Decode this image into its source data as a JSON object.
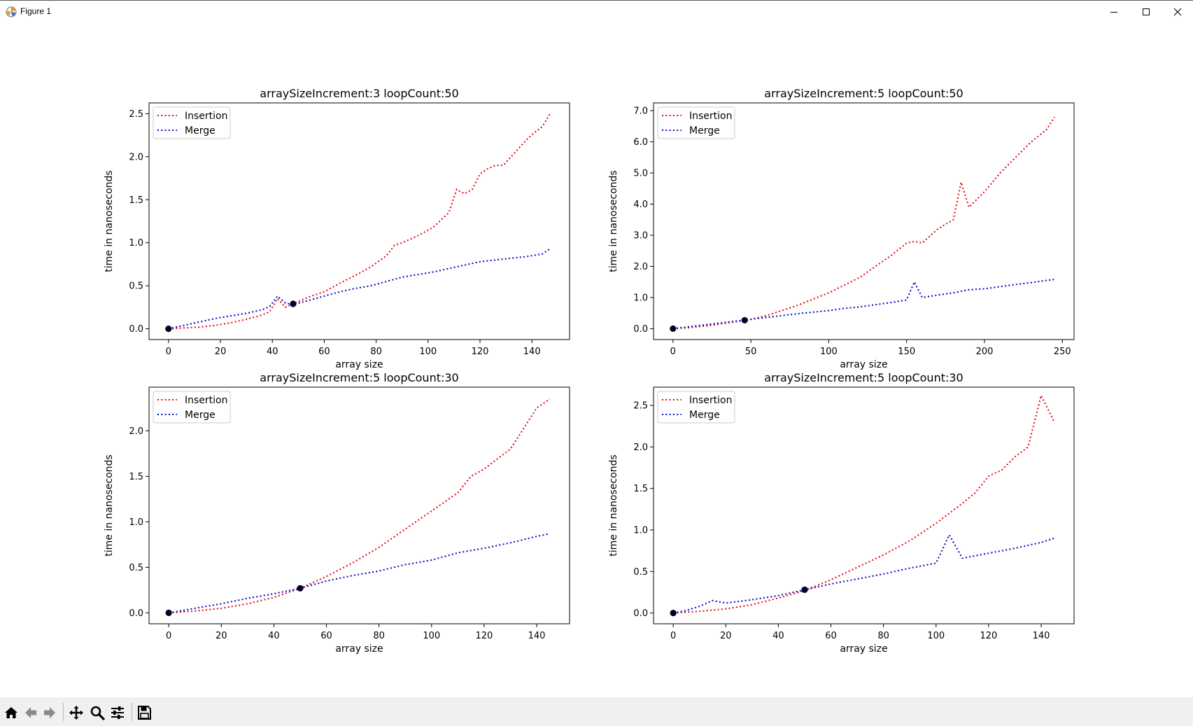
{
  "window": {
    "title": "Figure 1",
    "icons": {
      "app": "matplotlib-icon",
      "minimize": "minimize-icon",
      "maximize": "maximize-icon",
      "close": "close-icon"
    }
  },
  "toolbar": {
    "buttons": [
      {
        "name": "home",
        "icon": "home-icon"
      },
      {
        "name": "back",
        "icon": "back-arrow-icon"
      },
      {
        "name": "forward",
        "icon": "forward-arrow-icon"
      },
      {
        "name": "pan",
        "icon": "move-icon"
      },
      {
        "name": "zoom",
        "icon": "magnifier-icon"
      },
      {
        "name": "configure",
        "icon": "sliders-icon"
      },
      {
        "name": "save",
        "icon": "floppy-disk-icon"
      }
    ]
  },
  "colors": {
    "insertion": "#e8000b",
    "merge": "#0000c8",
    "crossover_marker": "#000022"
  },
  "chart_data": [
    {
      "type": "line",
      "title": "arraySizeIncrement:3 loopCount:50",
      "xlabel": "array size",
      "ylabel": "time in nanoseconds",
      "xlim": [
        -7.5,
        154.5
      ],
      "ylim": [
        -0.125,
        2.625
      ],
      "xticks": [
        0,
        20,
        40,
        60,
        80,
        100,
        120,
        140
      ],
      "xtick_labels": [
        "0",
        "20",
        "40",
        "60",
        "80",
        "100",
        "120",
        "140"
      ],
      "yticks": [
        0.0,
        0.5,
        1.0,
        1.5,
        2.0,
        2.5
      ],
      "ytick_labels": [
        "0.0",
        "0.5",
        "1.0",
        "1.5",
        "2.0",
        "2.5"
      ],
      "legend": {
        "position": "upper-left",
        "entries": [
          "Insertion",
          "Merge"
        ]
      },
      "series": [
        {
          "name": "Insertion",
          "style": "dotted",
          "color": "#e8000b",
          "x": [
            0,
            6,
            12,
            18,
            24,
            30,
            36,
            39,
            42,
            45,
            48,
            54,
            60,
            66,
            72,
            78,
            84,
            87,
            90,
            96,
            102,
            108,
            111,
            114,
            117,
            120,
            123,
            126,
            129,
            132,
            135,
            138,
            141,
            144,
            147
          ],
          "y": [
            0,
            0.01,
            0.02,
            0.04,
            0.07,
            0.11,
            0.16,
            0.2,
            0.35,
            0.25,
            0.29,
            0.37,
            0.43,
            0.53,
            0.62,
            0.72,
            0.85,
            0.97,
            1.0,
            1.08,
            1.18,
            1.35,
            1.62,
            1.57,
            1.62,
            1.8,
            1.86,
            1.9,
            1.9,
            2.0,
            2.1,
            2.2,
            2.28,
            2.35,
            2.5
          ]
        },
        {
          "name": "Merge",
          "style": "dotted",
          "color": "#0000c8",
          "x": [
            0,
            6,
            12,
            18,
            24,
            30,
            36,
            39,
            42,
            45,
            48,
            54,
            60,
            66,
            72,
            78,
            84,
            90,
            96,
            102,
            108,
            114,
            120,
            126,
            132,
            138,
            144,
            147
          ],
          "y": [
            0,
            0.04,
            0.08,
            0.12,
            0.15,
            0.18,
            0.22,
            0.26,
            0.38,
            0.3,
            0.28,
            0.33,
            0.38,
            0.43,
            0.47,
            0.5,
            0.55,
            0.6,
            0.63,
            0.66,
            0.7,
            0.74,
            0.78,
            0.8,
            0.82,
            0.84,
            0.87,
            0.93
          ]
        }
      ],
      "markers": [
        {
          "x": 0,
          "y": 0
        },
        {
          "x": 48,
          "y": 0.29
        }
      ]
    },
    {
      "type": "line",
      "title": "arraySizeIncrement:5 loopCount:50",
      "xlabel": "array size",
      "ylabel": "time in nanoseconds",
      "xlim": [
        -12.5,
        257.5
      ],
      "ylim": [
        -0.35,
        7.25
      ],
      "xticks": [
        0,
        50,
        100,
        150,
        200,
        250
      ],
      "xtick_labels": [
        "0",
        "50",
        "100",
        "150",
        "200",
        "250"
      ],
      "yticks": [
        0.0,
        1.0,
        2.0,
        3.0,
        4.0,
        5.0,
        6.0,
        7.0
      ],
      "ytick_labels": [
        "0.0",
        "1.0",
        "2.0",
        "3.0",
        "4.0",
        "5.0",
        "6.0",
        "7.0"
      ],
      "legend": {
        "position": "upper-left",
        "entries": [
          "Insertion",
          "Merge"
        ]
      },
      "series": [
        {
          "name": "Insertion",
          "style": "dotted",
          "color": "#e8000b",
          "x": [
            0,
            10,
            20,
            30,
            40,
            50,
            60,
            70,
            80,
            90,
            100,
            110,
            120,
            130,
            140,
            150,
            155,
            160,
            170,
            180,
            185,
            190,
            200,
            210,
            220,
            230,
            240,
            245
          ],
          "y": [
            0,
            0.03,
            0.08,
            0.15,
            0.22,
            0.3,
            0.42,
            0.58,
            0.75,
            0.95,
            1.15,
            1.4,
            1.65,
            2.0,
            2.35,
            2.75,
            2.8,
            2.75,
            3.2,
            3.5,
            4.7,
            3.9,
            4.4,
            5.0,
            5.5,
            6.0,
            6.4,
            6.8
          ]
        },
        {
          "name": "Merge",
          "style": "dotted",
          "color": "#0000c8",
          "x": [
            0,
            10,
            20,
            30,
            40,
            50,
            60,
            70,
            80,
            90,
            100,
            110,
            120,
            130,
            140,
            150,
            155,
            160,
            170,
            180,
            190,
            200,
            210,
            220,
            230,
            240,
            245
          ],
          "y": [
            0,
            0.06,
            0.12,
            0.18,
            0.24,
            0.3,
            0.36,
            0.42,
            0.48,
            0.53,
            0.58,
            0.65,
            0.7,
            0.77,
            0.84,
            0.92,
            1.5,
            1.0,
            1.08,
            1.15,
            1.25,
            1.28,
            1.35,
            1.42,
            1.48,
            1.55,
            1.58
          ]
        }
      ],
      "markers": [
        {
          "x": 0,
          "y": 0
        },
        {
          "x": 46,
          "y": 0.27
        }
      ]
    },
    {
      "type": "line",
      "title": "arraySizeIncrement:5 loopCount:30",
      "xlabel": "array size",
      "ylabel": "time in nanoseconds",
      "xlim": [
        -7.5,
        152.5
      ],
      "ylim": [
        -0.12,
        2.48
      ],
      "xticks": [
        0,
        20,
        40,
        60,
        80,
        100,
        120,
        140
      ],
      "xtick_labels": [
        "0",
        "20",
        "40",
        "60",
        "80",
        "100",
        "120",
        "140"
      ],
      "yticks": [
        0.0,
        0.5,
        1.0,
        1.5,
        2.0
      ],
      "ytick_labels": [
        "0.0",
        "0.5",
        "1.0",
        "1.5",
        "2.0"
      ],
      "legend": {
        "position": "upper-left",
        "entries": [
          "Insertion",
          "Merge"
        ]
      },
      "series": [
        {
          "name": "Insertion",
          "style": "dotted",
          "color": "#e8000b",
          "x": [
            0,
            10,
            20,
            30,
            40,
            50,
            60,
            70,
            80,
            90,
            100,
            110,
            115,
            120,
            130,
            140,
            145
          ],
          "y": [
            0,
            0.02,
            0.05,
            0.1,
            0.17,
            0.27,
            0.4,
            0.55,
            0.72,
            0.92,
            1.12,
            1.32,
            1.5,
            1.58,
            1.8,
            2.25,
            2.35
          ]
        },
        {
          "name": "Merge",
          "style": "dotted",
          "color": "#0000c8",
          "x": [
            0,
            10,
            20,
            30,
            40,
            50,
            60,
            70,
            80,
            90,
            100,
            110,
            120,
            130,
            140,
            145
          ],
          "y": [
            0,
            0.05,
            0.1,
            0.16,
            0.21,
            0.27,
            0.35,
            0.41,
            0.46,
            0.53,
            0.58,
            0.66,
            0.71,
            0.77,
            0.84,
            0.87
          ]
        }
      ],
      "markers": [
        {
          "x": 0,
          "y": 0
        },
        {
          "x": 50,
          "y": 0.27
        }
      ]
    },
    {
      "type": "line",
      "title": "arraySizeIncrement:5 loopCount:30",
      "xlabel": "array size",
      "ylabel": "time in nanoseconds",
      "xlim": [
        -7.5,
        152.5
      ],
      "ylim": [
        -0.13,
        2.72
      ],
      "xticks": [
        0,
        20,
        40,
        60,
        80,
        100,
        120,
        140
      ],
      "xtick_labels": [
        "0",
        "20",
        "40",
        "60",
        "80",
        "100",
        "120",
        "140"
      ],
      "yticks": [
        0.0,
        0.5,
        1.0,
        1.5,
        2.0,
        2.5
      ],
      "ytick_labels": [
        "0.0",
        "0.5",
        "1.0",
        "1.5",
        "2.0",
        "2.5"
      ],
      "legend": {
        "position": "upper-left",
        "entries": [
          "Insertion",
          "Merge"
        ]
      },
      "series": [
        {
          "name": "Insertion",
          "style": "dotted",
          "color": "#e8000b",
          "x": [
            0,
            10,
            20,
            30,
            40,
            50,
            60,
            70,
            80,
            90,
            100,
            110,
            115,
            120,
            125,
            130,
            135,
            140,
            145
          ],
          "y": [
            0,
            0.02,
            0.05,
            0.1,
            0.18,
            0.27,
            0.4,
            0.55,
            0.7,
            0.87,
            1.08,
            1.32,
            1.45,
            1.65,
            1.72,
            1.88,
            2.0,
            2.62,
            2.3
          ]
        },
        {
          "name": "Merge",
          "style": "dotted",
          "color": "#0000c8",
          "x": [
            0,
            5,
            10,
            15,
            20,
            30,
            40,
            50,
            60,
            70,
            80,
            90,
            100,
            105,
            110,
            120,
            130,
            140,
            145
          ],
          "y": [
            0,
            0.03,
            0.08,
            0.15,
            0.12,
            0.16,
            0.21,
            0.28,
            0.35,
            0.41,
            0.47,
            0.54,
            0.6,
            0.94,
            0.66,
            0.72,
            0.78,
            0.85,
            0.9
          ]
        }
      ],
      "markers": [
        {
          "x": 0,
          "y": 0
        },
        {
          "x": 50,
          "y": 0.28
        }
      ]
    }
  ]
}
